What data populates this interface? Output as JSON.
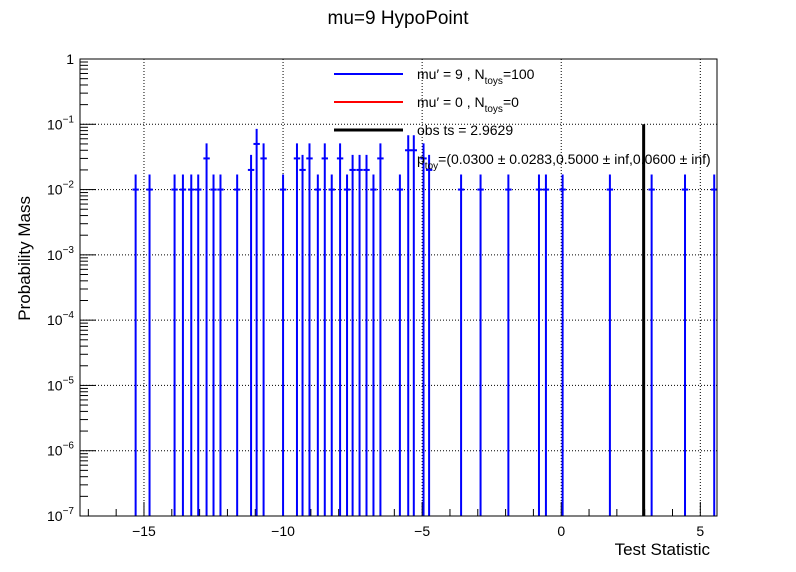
{
  "chart_data": {
    "type": "scatter",
    "title": "mu=9 HypoPoint",
    "xlabel": "Test Statistic",
    "ylabel": "Probability Mass",
    "xlim": [
      -17.3,
      5.6
    ],
    "ylim": [
      1e-07,
      1
    ],
    "y_scale": "log",
    "grid": true,
    "x_tick_labels": [
      "−15",
      "−10",
      "−5",
      "0",
      "5"
    ],
    "x_ticks": [
      -15,
      -10,
      -5,
      0,
      5
    ],
    "y_tick_labels": [
      {
        "base": "10",
        "exp": "−7",
        "value": 1e-07
      },
      {
        "base": "10",
        "exp": "−6",
        "value": 1e-06
      },
      {
        "base": "10",
        "exp": "−5",
        "value": 1e-05
      },
      {
        "base": "10",
        "exp": "−4",
        "value": 0.0001
      },
      {
        "base": "10",
        "exp": "−3",
        "value": 0.001
      },
      {
        "base": "10",
        "exp": "−2",
        "value": 0.01
      },
      {
        "base": "10",
        "exp": "−1",
        "value": 0.1
      },
      {
        "base": "1",
        "exp": "",
        "value": 1
      }
    ],
    "legend": {
      "placement": "top-right",
      "entries": [
        {
          "parts": [
            {
              "t": "mu′ = 9 , N"
            },
            {
              "t": "toys",
              "sub": true
            },
            {
              "t": "=100"
            }
          ],
          "color": "#0000ff"
        },
        {
          "parts": [
            {
              "t": "mu′ = 0 , N"
            },
            {
              "t": "toys",
              "sub": true
            },
            {
              "t": "=0"
            }
          ],
          "color": "#ff0000"
        },
        {
          "parts": [
            {
              "t": "obs ts = 2.9629"
            }
          ],
          "color": "#000000"
        },
        {
          "parts": [
            {
              "t": "p"
            },
            {
              "t": "toy",
              "sub": true
            },
            {
              "t": "=(0.0300 ± 0.0283,0.5000 ± inf,0.0600 ± inf)"
            }
          ],
          "color": null
        }
      ]
    },
    "observed_ts": 2.9629,
    "series": [
      {
        "name": "mu′ = 9 , N_toys=100",
        "color": "#0000ff",
        "bin_width": 0.23,
        "points": [
          {
            "x": -15.3,
            "y": 0.01
          },
          {
            "x": -14.8,
            "y": 0.01
          },
          {
            "x": -13.9,
            "y": 0.01
          },
          {
            "x": -13.6,
            "y": 0.01
          },
          {
            "x": -13.3,
            "y": 0.01
          },
          {
            "x": -13.05,
            "y": 0.01
          },
          {
            "x": -12.75,
            "y": 0.03
          },
          {
            "x": -12.5,
            "y": 0.01
          },
          {
            "x": -12.25,
            "y": 0.01
          },
          {
            "x": -11.65,
            "y": 0.01
          },
          {
            "x": -11.15,
            "y": 0.02
          },
          {
            "x": -10.95,
            "y": 0.05
          },
          {
            "x": -10.7,
            "y": 0.03
          },
          {
            "x": -10.0,
            "y": 0.01
          },
          {
            "x": -9.5,
            "y": 0.03
          },
          {
            "x": -9.3,
            "y": 0.02
          },
          {
            "x": -9.05,
            "y": 0.03
          },
          {
            "x": -8.75,
            "y": 0.01
          },
          {
            "x": -8.5,
            "y": 0.03
          },
          {
            "x": -8.25,
            "y": 0.01
          },
          {
            "x": -7.95,
            "y": 0.03
          },
          {
            "x": -7.7,
            "y": 0.01
          },
          {
            "x": -7.5,
            "y": 0.02
          },
          {
            "x": -7.25,
            "y": 0.02
          },
          {
            "x": -7.0,
            "y": 0.02
          },
          {
            "x": -6.75,
            "y": 0.01
          },
          {
            "x": -6.5,
            "y": 0.03
          },
          {
            "x": -5.8,
            "y": 0.01
          },
          {
            "x": -5.5,
            "y": 0.04
          },
          {
            "x": -5.3,
            "y": 0.04
          },
          {
            "x": -4.95,
            "y": 0.03
          },
          {
            "x": -4.75,
            "y": 0.02
          },
          {
            "x": -3.6,
            "y": 0.01
          },
          {
            "x": -2.9,
            "y": 0.01
          },
          {
            "x": -1.9,
            "y": 0.01
          },
          {
            "x": -0.8,
            "y": 0.01
          },
          {
            "x": -0.55,
            "y": 0.01
          },
          {
            "x": 0.05,
            "y": 0.01
          },
          {
            "x": 1.75,
            "y": 0.01
          },
          {
            "x": 3.25,
            "y": 0.01
          },
          {
            "x": 4.45,
            "y": 0.01
          },
          {
            "x": 5.5,
            "y": 0.01
          }
        ]
      }
    ]
  }
}
